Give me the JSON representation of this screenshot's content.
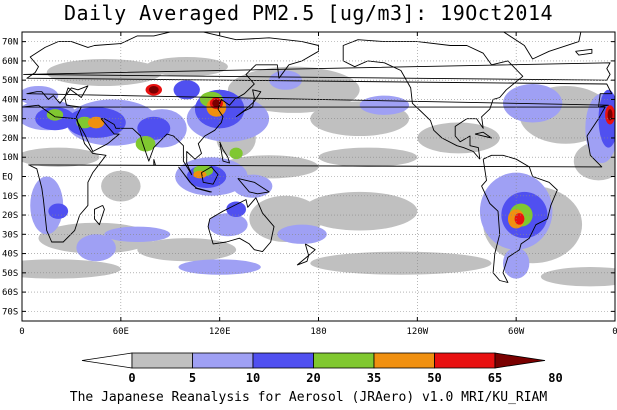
{
  "title": "Daily Averaged PM2.5 [ug/m3]: 19Oct2014",
  "credit": "The Japanese Reanalysis for Aerosol (JRAero) v1.0 MRI/KU_RIAM",
  "map": {
    "projection": "equirectangular",
    "lon_range": [
      0,
      360
    ],
    "lat_range": [
      -75,
      75
    ],
    "gridlines": "dotted",
    "ocean_color": "#ffffff",
    "coastline_color": "#000000"
  },
  "lat_ticks": [
    {
      "lat": 70,
      "label": "70N"
    },
    {
      "lat": 60,
      "label": "60N"
    },
    {
      "lat": 50,
      "label": "50N"
    },
    {
      "lat": 40,
      "label": "40N"
    },
    {
      "lat": 30,
      "label": "30N"
    },
    {
      "lat": 20,
      "label": "20N"
    },
    {
      "lat": 10,
      "label": "10N"
    },
    {
      "lat": 0,
      "label": "EQ"
    },
    {
      "lat": -10,
      "label": "10S"
    },
    {
      "lat": -20,
      "label": "20S"
    },
    {
      "lat": -30,
      "label": "30S"
    },
    {
      "lat": -40,
      "label": "40S"
    },
    {
      "lat": -50,
      "label": "50S"
    },
    {
      "lat": -60,
      "label": "60S"
    },
    {
      "lat": -70,
      "label": "70S"
    }
  ],
  "lon_ticks": [
    {
      "lon": 0,
      "label": "0"
    },
    {
      "lon": 60,
      "label": "60E"
    },
    {
      "lon": 120,
      "label": "120E"
    },
    {
      "lon": 180,
      "label": "180"
    },
    {
      "lon": 240,
      "label": "120W"
    },
    {
      "lon": 300,
      "label": "60W"
    },
    {
      "lon": 360,
      "label": "0"
    }
  ],
  "colorbar": {
    "levels": [
      "0",
      "5",
      "10",
      "20",
      "35",
      "50",
      "65",
      "80"
    ],
    "colors": [
      "#ffffff",
      "#c0c0c0",
      "#9fa0f4",
      "#5050f0",
      "#80c830",
      "#f09010",
      "#e81010",
      "#7a0000"
    ]
  },
  "features": [
    {
      "level": 1,
      "lon": 45,
      "lat": -32,
      "rx": 35,
      "ry": 8
    },
    {
      "level": 1,
      "lon": 100,
      "lat": -38,
      "rx": 30,
      "ry": 6
    },
    {
      "level": 1,
      "lon": 160,
      "lat": -22,
      "rx": 22,
      "ry": 12
    },
    {
      "level": 1,
      "lon": 205,
      "lat": -18,
      "rx": 35,
      "ry": 10
    },
    {
      "level": 1,
      "lon": 230,
      "lat": -45,
      "rx": 55,
      "ry": 6
    },
    {
      "level": 1,
      "lon": 20,
      "lat": -48,
      "rx": 40,
      "ry": 5
    },
    {
      "level": 1,
      "lon": 345,
      "lat": -52,
      "rx": 30,
      "ry": 5
    },
    {
      "level": 1,
      "lon": 150,
      "lat": 5,
      "rx": 30,
      "ry": 6
    },
    {
      "level": 1,
      "lon": 210,
      "lat": 10,
      "rx": 30,
      "ry": 5
    },
    {
      "level": 1,
      "lon": 265,
      "lat": 20,
      "rx": 25,
      "ry": 8
    },
    {
      "level": 1,
      "lon": 165,
      "lat": 45,
      "rx": 40,
      "ry": 12
    },
    {
      "level": 1,
      "lon": 205,
      "lat": 30,
      "rx": 30,
      "ry": 9
    },
    {
      "level": 1,
      "lon": 50,
      "lat": 54,
      "rx": 35,
      "ry": 7
    },
    {
      "level": 1,
      "lon": 100,
      "lat": 57,
      "rx": 25,
      "ry": 5
    },
    {
      "level": 1,
      "lon": 330,
      "lat": 32,
      "rx": 28,
      "ry": 15
    },
    {
      "level": 1,
      "lon": 350,
      "lat": 8,
      "rx": 15,
      "ry": 10
    },
    {
      "level": 1,
      "lon": 310,
      "lat": -25,
      "rx": 30,
      "ry": 20
    },
    {
      "level": 1,
      "lon": 22,
      "lat": 10,
      "rx": 25,
      "ry": 5
    },
    {
      "level": 1,
      "lon": 60,
      "lat": -5,
      "rx": 12,
      "ry": 8
    },
    {
      "level": 1,
      "lon": 130,
      "lat": 20,
      "rx": 12,
      "ry": 10
    },
    {
      "level": 2,
      "lon": 55,
      "lat": 28,
      "rx": 28,
      "ry": 12
    },
    {
      "level": 2,
      "lon": 15,
      "lat": 32,
      "rx": 18,
      "ry": 8
    },
    {
      "level": 2,
      "lon": 10,
      "lat": 42,
      "rx": 12,
      "ry": 5
    },
    {
      "level": 2,
      "lon": 85,
      "lat": 25,
      "rx": 15,
      "ry": 10
    },
    {
      "level": 2,
      "lon": 125,
      "lat": 30,
      "rx": 25,
      "ry": 12
    },
    {
      "level": 2,
      "lon": 115,
      "lat": 0,
      "rx": 22,
      "ry": 10
    },
    {
      "level": 2,
      "lon": 140,
      "lat": -5,
      "rx": 12,
      "ry": 6
    },
    {
      "level": 2,
      "lon": 125,
      "lat": -25,
      "rx": 12,
      "ry": 6
    },
    {
      "level": 2,
      "lon": 15,
      "lat": -15,
      "rx": 10,
      "ry": 15
    },
    {
      "level": 2,
      "lon": 45,
      "lat": -37,
      "rx": 12,
      "ry": 7
    },
    {
      "level": 2,
      "lon": 70,
      "lat": -30,
      "rx": 20,
      "ry": 4
    },
    {
      "level": 2,
      "lon": 120,
      "lat": -47,
      "rx": 25,
      "ry": 4
    },
    {
      "level": 2,
      "lon": 170,
      "lat": -30,
      "rx": 15,
      "ry": 5
    },
    {
      "level": 2,
      "lon": 300,
      "lat": -18,
      "rx": 22,
      "ry": 20
    },
    {
      "level": 2,
      "lon": 300,
      "lat": -45,
      "rx": 8,
      "ry": 8
    },
    {
      "level": 2,
      "lon": 310,
      "lat": 38,
      "rx": 18,
      "ry": 10
    },
    {
      "level": 2,
      "lon": 352,
      "lat": 25,
      "rx": 10,
      "ry": 18
    },
    {
      "level": 2,
      "lon": 220,
      "lat": 37,
      "rx": 15,
      "ry": 5
    },
    {
      "level": 2,
      "lon": 160,
      "lat": 50,
      "rx": 10,
      "ry": 5
    },
    {
      "level": 3,
      "lon": 20,
      "lat": 30,
      "rx": 12,
      "ry": 6
    },
    {
      "level": 3,
      "lon": 45,
      "lat": 28,
      "rx": 18,
      "ry": 8
    },
    {
      "level": 3,
      "lon": 80,
      "lat": 25,
      "rx": 10,
      "ry": 6
    },
    {
      "level": 3,
      "lon": 120,
      "lat": 35,
      "rx": 15,
      "ry": 10
    },
    {
      "level": 3,
      "lon": 112,
      "lat": 0,
      "rx": 12,
      "ry": 6
    },
    {
      "level": 3,
      "lon": 22,
      "lat": -18,
      "rx": 6,
      "ry": 4
    },
    {
      "level": 3,
      "lon": 130,
      "lat": -17,
      "rx": 6,
      "ry": 4
    },
    {
      "level": 3,
      "lon": 305,
      "lat": -20,
      "rx": 14,
      "ry": 12
    },
    {
      "level": 3,
      "lon": 356,
      "lat": 30,
      "rx": 6,
      "ry": 15
    },
    {
      "level": 3,
      "lon": 100,
      "lat": 45,
      "rx": 8,
      "ry": 5
    },
    {
      "level": 4,
      "lon": 38,
      "lat": 28,
      "rx": 5,
      "ry": 3
    },
    {
      "level": 4,
      "lon": 20,
      "lat": 32,
      "rx": 5,
      "ry": 3
    },
    {
      "level": 4,
      "lon": 75,
      "lat": 17,
      "rx": 6,
      "ry": 4
    },
    {
      "level": 4,
      "lon": 115,
      "lat": 40,
      "rx": 7,
      "ry": 4
    },
    {
      "level": 4,
      "lon": 110,
      "lat": 3,
      "rx": 6,
      "ry": 3
    },
    {
      "level": 4,
      "lon": 303,
      "lat": -20,
      "rx": 7,
      "ry": 6
    },
    {
      "level": 4,
      "lon": 130,
      "lat": 12,
      "rx": 4,
      "ry": 3
    },
    {
      "level": 5,
      "lon": 45,
      "lat": 28,
      "rx": 5,
      "ry": 3
    },
    {
      "level": 5,
      "lon": 118,
      "lat": 36,
      "rx": 6,
      "ry": 5
    },
    {
      "level": 5,
      "lon": 300,
      "lat": -22,
      "rx": 5,
      "ry": 5
    },
    {
      "level": 5,
      "lon": 108,
      "lat": 1,
      "rx": 4,
      "ry": 2
    },
    {
      "level": 6,
      "lon": 80,
      "lat": 45,
      "rx": 5,
      "ry": 3
    },
    {
      "level": 6,
      "lon": 118,
      "lat": 38,
      "rx": 4,
      "ry": 3
    },
    {
      "level": 6,
      "lon": 302,
      "lat": -22,
      "rx": 3,
      "ry": 3
    },
    {
      "level": 6,
      "lon": 357,
      "lat": 32,
      "rx": 3,
      "ry": 5
    },
    {
      "level": 7,
      "lon": 80,
      "lat": 45,
      "rx": 3,
      "ry": 2
    },
    {
      "level": 7,
      "lon": 118,
      "lat": 38,
      "rx": 2.5,
      "ry": 2
    },
    {
      "level": 7,
      "lon": 357,
      "lat": 32,
      "rx": 1.5,
      "ry": 3
    }
  ],
  "coastlines": [
    [
      [
        -17,
        21
      ],
      [
        -15,
        11
      ],
      [
        -8,
        5
      ],
      [
        4,
        6
      ],
      [
        9,
        4
      ],
      [
        12,
        -6
      ],
      [
        13,
        -12
      ],
      [
        15,
        -28
      ],
      [
        18,
        -34
      ],
      [
        25,
        -34
      ],
      [
        32,
        -28
      ],
      [
        35,
        -20
      ],
      [
        40,
        -15
      ],
      [
        40,
        -3
      ],
      [
        43,
        2
      ],
      [
        51,
        11
      ],
      [
        43,
        12
      ],
      [
        38,
        17
      ],
      [
        33,
        30
      ],
      [
        20,
        31
      ],
      [
        10,
        37
      ],
      [
        0,
        36
      ],
      [
        -6,
        36
      ],
      [
        -10,
        30
      ],
      [
        -17,
        21
      ]
    ],
    [
      [
        -10,
        36
      ],
      [
        -9,
        43
      ],
      [
        -2,
        43
      ],
      [
        -5,
        48
      ],
      [
        3,
        51
      ],
      [
        8,
        54
      ],
      [
        10,
        57
      ],
      [
        5,
        62
      ],
      [
        14,
        67
      ],
      [
        22,
        70
      ],
      [
        30,
        70
      ],
      [
        40,
        67
      ],
      [
        44,
        68
      ],
      [
        60,
        69
      ],
      [
        70,
        73
      ],
      [
        80,
        73
      ],
      [
        100,
        77
      ],
      [
        130,
        71
      ],
      [
        150,
        72
      ],
      [
        170,
        70
      ],
      [
        180,
        68
      ],
      [
        180,
        65
      ],
      [
        170,
        60
      ],
      [
        162,
        58
      ],
      [
        156,
        51
      ],
      [
        155,
        58
      ],
      [
        142,
        58
      ],
      [
        136,
        53
      ],
      [
        141,
        48
      ],
      [
        135,
        43
      ],
      [
        129,
        40
      ],
      [
        126,
        37
      ],
      [
        121,
        40
      ],
      [
        119,
        35
      ],
      [
        122,
        31
      ],
      [
        121,
        28
      ],
      [
        117,
        24
      ],
      [
        111,
        21
      ],
      [
        107,
        17
      ],
      [
        109,
        12
      ],
      [
        105,
        9
      ],
      [
        100,
        13
      ],
      [
        100,
        7
      ],
      [
        103,
        1
      ],
      [
        98,
        8
      ],
      [
        98,
        16
      ],
      [
        92,
        21
      ],
      [
        88,
        22
      ],
      [
        80,
        15
      ],
      [
        77,
        8
      ],
      [
        73,
        18
      ],
      [
        72,
        21
      ],
      [
        67,
        25
      ],
      [
        57,
        25
      ],
      [
        56,
        27
      ],
      [
        50,
        30
      ],
      [
        48,
        30
      ],
      [
        56,
        22
      ],
      [
        59,
        22
      ],
      [
        52,
        17
      ],
      [
        43,
        13
      ],
      [
        38,
        22
      ],
      [
        34,
        28
      ],
      [
        33,
        31
      ],
      [
        36,
        36
      ],
      [
        27,
        37
      ],
      [
        26,
        41
      ],
      [
        28,
        46
      ],
      [
        36,
        41
      ],
      [
        40,
        47
      ],
      [
        34,
        45
      ],
      [
        30,
        46
      ],
      [
        23,
        38
      ],
      [
        19,
        42
      ],
      [
        16,
        40
      ],
      [
        12,
        44
      ],
      [
        9,
        44
      ],
      [
        3,
        43
      ],
      [
        -4,
        37
      ],
      [
        -10,
        36
      ]
    ],
    [
      [
        -5,
        50
      ],
      [
        -3,
        53
      ],
      [
        -5,
        56
      ],
      [
        -3,
        59
      ],
      [
        1,
        53
      ],
      [
        -5,
        50
      ]
    ],
    [
      [
        114,
        -22
      ],
      [
        122,
        -18
      ],
      [
        129,
        -15
      ],
      [
        136,
        -12
      ],
      [
        137,
        -16
      ],
      [
        142,
        -11
      ],
      [
        146,
        -19
      ],
      [
        153,
        -26
      ],
      [
        151,
        -34
      ],
      [
        146,
        -39
      ],
      [
        141,
        -38
      ],
      [
        138,
        -35
      ],
      [
        132,
        -32
      ],
      [
        124,
        -34
      ],
      [
        116,
        -35
      ],
      [
        113,
        -26
      ],
      [
        114,
        -22
      ]
    ],
    [
      [
        -80,
        9
      ],
      [
        -78,
        -2
      ],
      [
        -81,
        -5
      ],
      [
        -76,
        -14
      ],
      [
        -71,
        -18
      ],
      [
        -70,
        -30
      ],
      [
        -73,
        -40
      ],
      [
        -74,
        -50
      ],
      [
        -70,
        -54
      ],
      [
        -65,
        -55
      ],
      [
        -68,
        -50
      ],
      [
        -65,
        -42
      ],
      [
        -58,
        -38
      ],
      [
        -57,
        -35
      ],
      [
        -52,
        -32
      ],
      [
        -48,
        -25
      ],
      [
        -41,
        -22
      ],
      [
        -39,
        -15
      ],
      [
        -35,
        -7
      ],
      [
        -40,
        -3
      ],
      [
        -50,
        0
      ],
      [
        -52,
        5
      ],
      [
        -60,
        9
      ],
      [
        -68,
        11
      ],
      [
        -75,
        11
      ],
      [
        -80,
        9
      ]
    ],
    [
      [
        -82,
        9
      ],
      [
        -86,
        13
      ],
      [
        -92,
        15
      ],
      [
        -96,
        16
      ],
      [
        -105,
        20
      ],
      [
        -110,
        24
      ],
      [
        -112,
        29
      ],
      [
        -118,
        34
      ],
      [
        -123,
        38
      ],
      [
        -124,
        46
      ],
      [
        -130,
        55
      ],
      [
        -140,
        59
      ],
      [
        -150,
        60
      ],
      [
        -158,
        57
      ],
      [
        -165,
        60
      ],
      [
        -165,
        68
      ],
      [
        -156,
        71
      ],
      [
        -140,
        70
      ],
      [
        -120,
        70
      ],
      [
        -100,
        68
      ],
      [
        -90,
        68
      ],
      [
        -80,
        64
      ],
      [
        -75,
        58
      ],
      [
        -65,
        60
      ],
      [
        -56,
        52
      ],
      [
        -66,
        45
      ],
      [
        -70,
        41
      ],
      [
        -74,
        40
      ],
      [
        -76,
        35
      ],
      [
        -81,
        31
      ],
      [
        -80,
        25
      ],
      [
        -84,
        30
      ],
      [
        -90,
        30
      ],
      [
        -97,
        26
      ],
      [
        -97,
        21
      ],
      [
        -94,
        18
      ],
      [
        -88,
        21
      ],
      [
        -88,
        16
      ],
      [
        -83,
        15
      ],
      [
        -82,
        9
      ]
    ],
    [
      [
        130,
        31
      ],
      [
        135,
        34
      ],
      [
        140,
        36
      ],
      [
        141,
        41
      ],
      [
        140,
        45
      ],
      [
        145,
        44
      ],
      [
        141,
        39
      ],
      [
        136,
        35
      ],
      [
        130,
        31
      ]
    ],
    [
      [
        95,
        5
      ],
      [
        102,
        -3
      ],
      [
        106,
        -6
      ],
      [
        103,
        -4
      ],
      [
        95,
        5
      ]
    ],
    [
      [
        109,
        2
      ],
      [
        115,
        5
      ],
      [
        119,
        1
      ],
      [
        116,
        -4
      ],
      [
        110,
        -3
      ],
      [
        109,
        2
      ]
    ],
    [
      [
        105,
        -6
      ],
      [
        114,
        -8
      ],
      [
        115,
        -8
      ],
      [
        106,
        -6
      ]
    ],
    [
      [
        131,
        -1
      ],
      [
        141,
        -3
      ],
      [
        150,
        -8
      ],
      [
        143,
        -9
      ],
      [
        138,
        -8
      ],
      [
        131,
        -1
      ]
    ],
    [
      [
        172,
        -35
      ],
      [
        178,
        -38
      ],
      [
        174,
        -41
      ],
      [
        172,
        -35
      ]
    ],
    [
      [
        167,
        -46
      ],
      [
        174,
        -41
      ],
      [
        173,
        -44
      ],
      [
        167,
        -46
      ]
    ],
    [
      [
        49,
        -15
      ],
      [
        50,
        -17
      ],
      [
        47,
        -25
      ],
      [
        44,
        -22
      ],
      [
        44,
        -17
      ],
      [
        49,
        -15
      ]
    ],
    [
      [
        120,
        18
      ],
      [
        122,
        14
      ],
      [
        125,
        10
      ],
      [
        126,
        7
      ],
      [
        122,
        8
      ],
      [
        120,
        18
      ]
    ],
    [
      [
        80,
        9
      ],
      [
        81,
        6
      ],
      [
        80,
        6
      ],
      [
        80,
        9
      ]
    ],
    [
      [
        -73,
        82
      ],
      [
        -45,
        83
      ],
      [
        -20,
        78
      ],
      [
        -22,
        70
      ],
      [
        -40,
        65
      ],
      [
        -50,
        61
      ],
      [
        -55,
        68
      ],
      [
        -73,
        78
      ]
    ],
    [
      [
        -85,
        22
      ],
      [
        -75,
        20
      ],
      [
        -80,
        23
      ],
      [
        -85,
        22
      ]
    ],
    [
      [
        -24,
        65
      ],
      [
        -14,
        66
      ],
      [
        -14,
        64
      ],
      [
        -22,
        63
      ],
      [
        -24,
        65
      ]
    ]
  ]
}
